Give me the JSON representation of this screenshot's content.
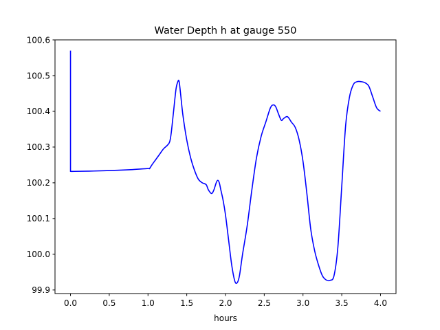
{
  "chart_data": {
    "type": "line",
    "title": "Water Depth h at gauge 550",
    "xlabel": "hours",
    "ylabel": "",
    "xlim": [
      -0.2,
      4.2
    ],
    "ylim": [
      99.89,
      100.6
    ],
    "x_ticks": [
      0.0,
      0.5,
      1.0,
      1.5,
      2.0,
      2.5,
      3.0,
      3.5,
      4.0
    ],
    "x_tick_labels": [
      "0.0",
      "0.5",
      "1.0",
      "1.5",
      "2.0",
      "2.5",
      "3.0",
      "3.5",
      "4.0"
    ],
    "y_ticks": [
      99.9,
      100.0,
      100.1,
      100.2,
      100.3,
      100.4,
      100.5,
      100.6
    ],
    "y_tick_labels": [
      "99.9",
      "100.0",
      "100.1",
      "100.2",
      "100.3",
      "100.4",
      "100.5",
      "100.6"
    ],
    "grid": false,
    "series": [
      {
        "color": "#0000ff",
        "x": [
          0.0,
          0.0,
          0.005,
          0.05,
          0.3,
          0.6,
          0.8,
          1.0,
          1.02,
          1.05,
          1.1,
          1.15,
          1.2,
          1.25,
          1.28,
          1.3,
          1.33,
          1.36,
          1.38,
          1.4,
          1.42,
          1.45,
          1.5,
          1.55,
          1.6,
          1.65,
          1.7,
          1.75,
          1.78,
          1.82,
          1.85,
          1.88,
          1.9,
          1.92,
          1.94,
          1.97,
          2.0,
          2.04,
          2.08,
          2.12,
          2.15,
          2.18,
          2.22,
          2.28,
          2.34,
          2.4,
          2.46,
          2.52,
          2.58,
          2.62,
          2.65,
          2.68,
          2.72,
          2.75,
          2.8,
          2.85,
          2.9,
          2.95,
          3.0,
          3.05,
          3.1,
          3.15,
          3.2,
          3.25,
          3.3,
          3.35,
          3.4,
          3.45,
          3.5,
          3.55,
          3.6,
          3.65,
          3.7,
          3.75,
          3.8,
          3.85,
          3.9,
          3.95,
          4.0
        ],
        "y": [
          100.57,
          100.232,
          100.232,
          100.232,
          100.233,
          100.235,
          100.237,
          100.24,
          100.24,
          100.25,
          100.265,
          100.28,
          100.295,
          100.305,
          100.315,
          100.34,
          100.4,
          100.46,
          100.48,
          100.485,
          100.45,
          100.39,
          100.32,
          100.27,
          100.235,
          100.21,
          100.2,
          100.195,
          100.18,
          100.17,
          100.18,
          100.2,
          100.207,
          100.2,
          100.18,
          100.15,
          100.11,
          100.04,
          99.97,
          99.925,
          99.92,
          99.94,
          100.0,
          100.08,
          100.18,
          100.27,
          100.33,
          100.37,
          100.41,
          100.418,
          100.412,
          100.395,
          100.375,
          100.38,
          100.385,
          100.37,
          100.355,
          100.32,
          100.26,
          100.17,
          100.07,
          100.01,
          99.97,
          99.94,
          99.928,
          99.927,
          99.94,
          100.02,
          100.19,
          100.36,
          100.44,
          100.475,
          100.483,
          100.483,
          100.48,
          100.47,
          100.44,
          100.41,
          100.4
        ]
      }
    ]
  }
}
